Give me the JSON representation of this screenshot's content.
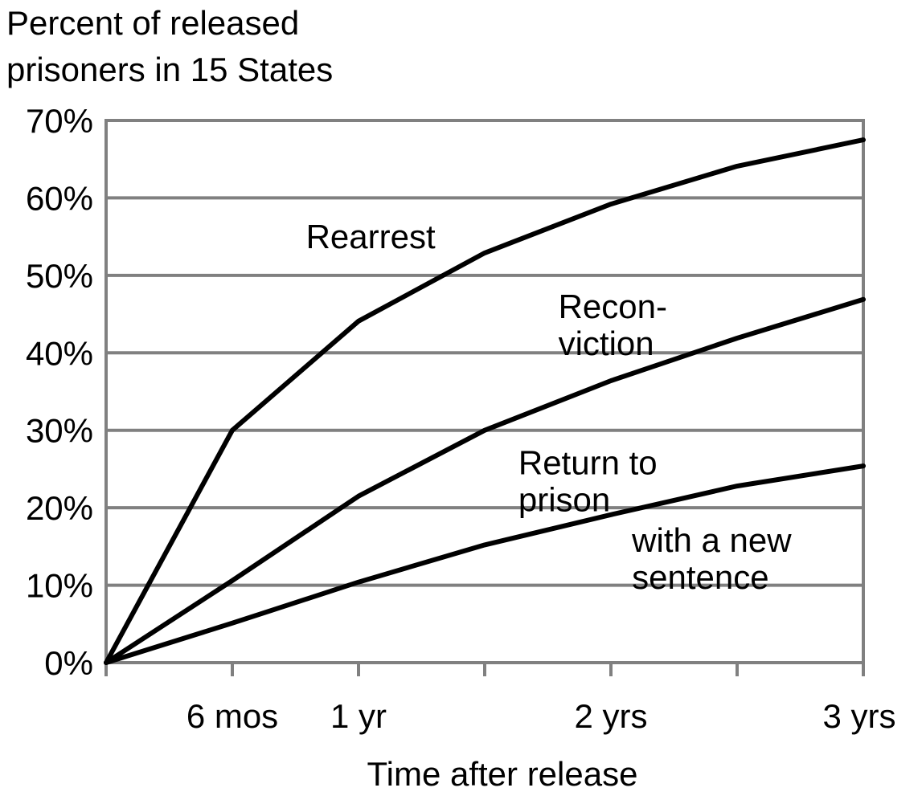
{
  "chart_data": {
    "type": "line",
    "ylabel_lines": [
      "Percent of released",
      "prisoners in 15 States"
    ],
    "xlabel": "Time after release",
    "ylim": [
      0,
      70
    ],
    "xlim": [
      0,
      36
    ],
    "y_ticks": [
      0,
      10,
      20,
      30,
      40,
      50,
      60,
      70
    ],
    "y_tick_labels": [
      "0%",
      "10%",
      "20%",
      "30%",
      "40%",
      "50%",
      "60%",
      "70%"
    ],
    "x_minor_ticks": [
      0,
      6,
      12,
      18,
      24,
      30,
      36
    ],
    "x_tick_labels": [
      {
        "x": 6,
        "label": "6 mos"
      },
      {
        "x": 12,
        "label": "1 yr"
      },
      {
        "x": 24,
        "label": "2 yrs"
      },
      {
        "x": 36,
        "label": "3 yrs"
      }
    ],
    "grid": true,
    "series": [
      {
        "name": "Rearrest",
        "x": [
          0,
          6,
          12,
          18,
          24,
          30,
          36
        ],
        "values": [
          0,
          30.0,
          44.1,
          52.9,
          59.2,
          64.1,
          67.5
        ]
      },
      {
        "name": "Recon-viction",
        "x": [
          0,
          6,
          12,
          18,
          24,
          30,
          36
        ],
        "values": [
          0,
          10.6,
          21.5,
          30.0,
          36.4,
          41.9,
          46.9
        ]
      },
      {
        "name": "Return to prison with a new sentence",
        "x": [
          0,
          6,
          12,
          18,
          24,
          30,
          36
        ],
        "values": [
          0,
          5.1,
          10.4,
          15.2,
          19.1,
          22.8,
          25.4
        ]
      }
    ],
    "annotations": [
      {
        "series": 0,
        "lines": [
          "Rearrest"
        ],
        "at": [
          9.5,
          53.5
        ]
      },
      {
        "series": 1,
        "lines": [
          "Recon-",
          "viction"
        ],
        "at": [
          21.5,
          44.5
        ]
      },
      {
        "series": 2,
        "lines": [
          "Return to",
          "prison"
        ],
        "at": [
          19.6,
          24.3
        ]
      },
      {
        "series": 2,
        "lines": [
          "with a new",
          "sentence"
        ],
        "at": [
          25.0,
          14.3
        ]
      }
    ]
  }
}
